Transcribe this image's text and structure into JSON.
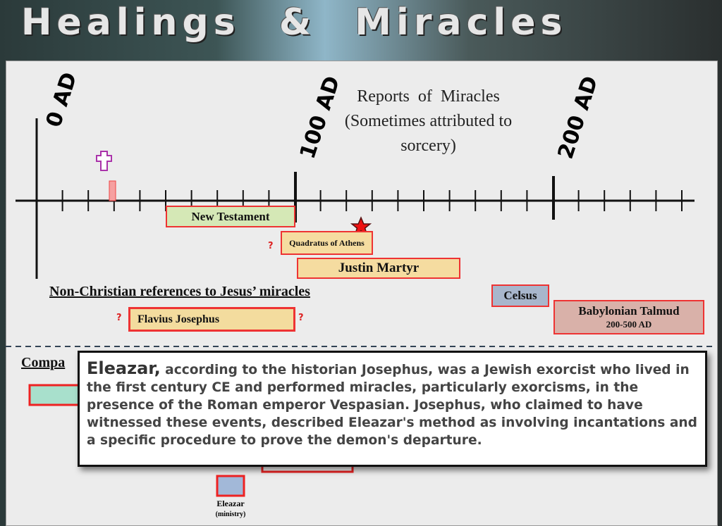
{
  "header": {
    "title": "Healings & Miracles"
  },
  "timeline": {
    "axis_labels": [
      "0 AD",
      "100 AD",
      "200 AD"
    ],
    "heading_lines": [
      "Reports  of  Miracles",
      "(Sometimes attributed to",
      "sorcery)"
    ],
    "entries": {
      "new_testament": "New Testament",
      "quadratus": "Quadratus of Athens",
      "justin": "Justin Martyr",
      "celsus": "Celsus",
      "talmud": "Babylonian Talmud",
      "talmud_dates": "200-500 AD",
      "josephus": "Flavius Josephus"
    },
    "uncertain_marks": [
      "?",
      "?",
      "?"
    ],
    "non_christian_heading": "Non-Christian references to Jesus’ miracles"
  },
  "comparison": {
    "heading": "Compa",
    "eleazar_label": "Eleazar",
    "eleazar_note": "(ministry)"
  },
  "tooltip": {
    "term": "Eleazar,",
    "text": "according to the historian Josephus, was a Jewish exorcist who lived in the first century CE and performed miracles, particularly exorcisms, in the presence of the Roman emperor Vespasian. Josephus, who claimed to have witnessed these events, described Eleazar's method as involving incantations and a specific procedure to prove the demon's departure."
  }
}
